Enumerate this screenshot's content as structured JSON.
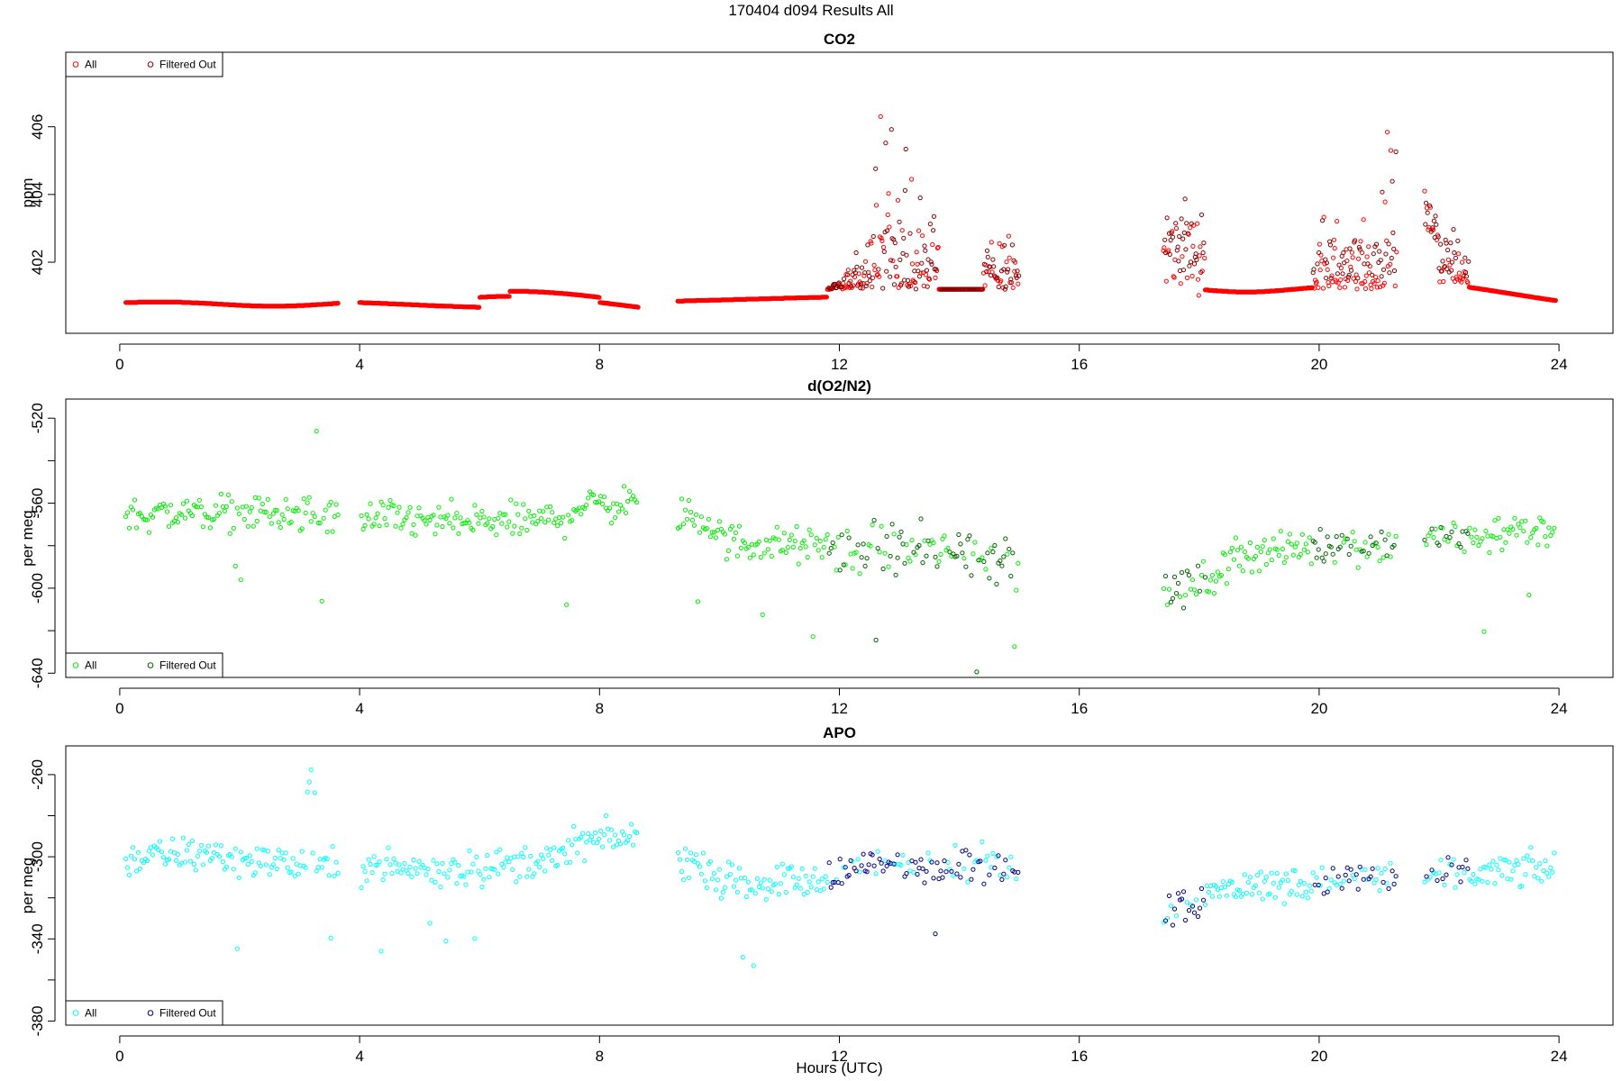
{
  "title": "170404   d094   Results All",
  "xlabel": "Hours (UTC)",
  "chart_data": [
    {
      "type": "scatter",
      "title": "CO2",
      "ylabel": "ppm",
      "xlim": [
        -0.9,
        24.9
      ],
      "ylim": [
        399.9,
        408.2
      ],
      "xticks": [
        0,
        4,
        8,
        12,
        16,
        20,
        24
      ],
      "yticks": [
        402,
        404,
        406
      ],
      "yminor": [],
      "grid": false,
      "legend": {
        "placement": "top-left",
        "entries": [
          "All",
          "Filtered Out"
        ]
      },
      "series": [
        {
          "name": "All",
          "color": "#ff0000",
          "gen": "co2_all"
        },
        {
          "name": "Filtered Out",
          "color": "#8b0000",
          "gen": "co2_filtered"
        }
      ]
    },
    {
      "type": "scatter",
      "title": "d(O2/N2)",
      "ylabel": "per meg",
      "xlim": [
        -0.9,
        24.9
      ],
      "ylim": [
        -642,
        -511
      ],
      "xticks": [
        0,
        4,
        8,
        12,
        16,
        20,
        24
      ],
      "yticks": [
        -520,
        -560,
        -600,
        -640
      ],
      "yminor": [
        -540,
        -580,
        -620
      ],
      "grid": false,
      "legend": {
        "placement": "bottom-left",
        "entries": [
          "All",
          "Filtered Out"
        ]
      },
      "series": [
        {
          "name": "All",
          "color": "#00ee00",
          "gen": "o2_all"
        },
        {
          "name": "Filtered Out",
          "color": "#006400",
          "gen": "o2_filtered"
        }
      ]
    },
    {
      "type": "scatter",
      "title": "APO",
      "ylabel": "per meg",
      "xlim": [
        -0.9,
        24.9
      ],
      "ylim": [
        -382,
        -246
      ],
      "xticks": [
        0,
        4,
        8,
        12,
        16,
        20,
        24
      ],
      "yticks": [
        -260,
        -300,
        -340,
        -380
      ],
      "yminor": [
        -280,
        -320,
        -360
      ],
      "grid": false,
      "legend": {
        "placement": "bottom-left",
        "entries": [
          "All",
          "Filtered Out"
        ]
      },
      "series": [
        {
          "name": "All",
          "color": "#00ffff",
          "gen": "apo_all"
        },
        {
          "name": "Filtered Out",
          "color": "#00008b",
          "gen": "apo_filtered"
        }
      ]
    }
  ]
}
